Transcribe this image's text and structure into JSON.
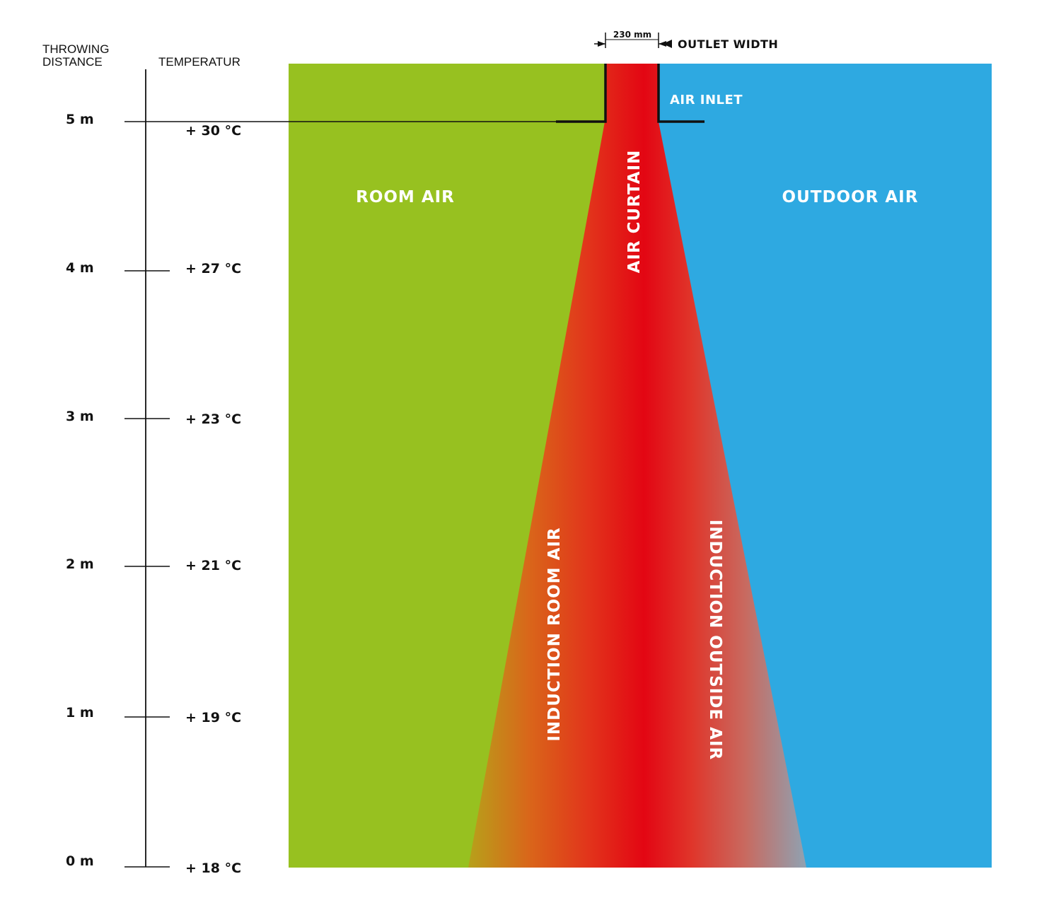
{
  "headers": {
    "distance_line1": "THROWING",
    "distance_line2": "DISTANCE",
    "temperature": "TEMPERATUR"
  },
  "scale": [
    {
      "distance": "0 m",
      "temperature": "+ 18 °C"
    },
    {
      "distance": "1 m",
      "temperature": "+ 19 °C"
    },
    {
      "distance": "2 m",
      "temperature": "+ 21 °C"
    },
    {
      "distance": "3 m",
      "temperature": "+ 23 °C"
    },
    {
      "distance": "4 m",
      "temperature": "+ 27 °C"
    },
    {
      "distance": "5 m",
      "temperature": "+ 30 °C"
    }
  ],
  "labels": {
    "outlet_dimension": "230 mm",
    "outlet_width": "OUTLET WIDTH",
    "air_inlet": "AIR INLET",
    "room_air": "ROOM AIR",
    "outdoor_air": "OUTDOOR AIR",
    "air_curtain": "AIR CURTAIN",
    "induction_room_air": "INDUCTION ROOM AIR",
    "induction_outside_air": "INDUCTION OUTSIDE AIR"
  },
  "colors": {
    "room_air": "#97c120",
    "outdoor_air": "#2ea9e1",
    "curtain_core": "#e30613",
    "curtain_room_edge": "#b7a11a",
    "curtain_outdoor_edge": "#8fa2b2"
  }
}
